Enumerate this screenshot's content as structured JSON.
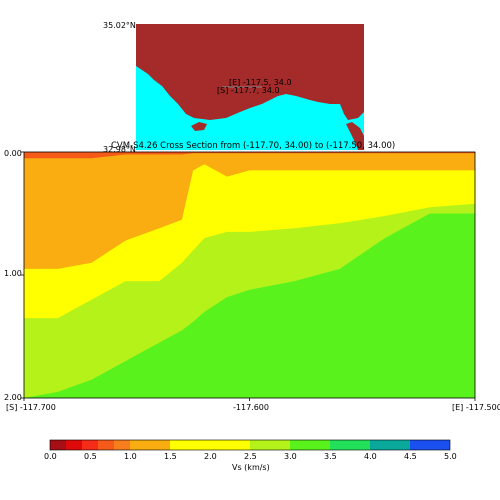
{
  "map": {
    "lat_top_label": "35.02°N",
    "lat_bottom_label": "32.98°N",
    "start_label": "[S] -117.7, 34.0",
    "end_label": "[E] -117.5, 34.0",
    "land_color": "#a52a2a",
    "ocean_color": "#00ffff"
  },
  "chart_data": {
    "type": "heatmap",
    "title": "CVM-S4.26 Cross Section from (-117.70, 34.00) to (-117.50, 34.00)",
    "x_ticks": [
      "[S] -117.700",
      "-117.600",
      "[E] -117.500"
    ],
    "y_ticks": [
      "0.00",
      "1.00",
      "2.00"
    ],
    "xlim": [
      -117.7,
      -117.5
    ],
    "ylim": [
      0,
      2
    ],
    "x": [
      -117.7,
      -117.685,
      -117.67,
      -117.655,
      -117.64,
      -117.63,
      -117.625,
      -117.62,
      -117.61,
      -117.6,
      -117.58,
      -117.56,
      -117.54,
      -117.52,
      -117.5
    ],
    "boundaries": [
      {
        "vs_above": 0.75,
        "vs_below": 1.25,
        "depth": [
          0.05,
          0.05,
          0.05,
          0.02,
          0.02,
          0.02,
          0.01,
          0.01,
          0.01,
          0.01,
          0.01,
          0.01,
          0.01,
          0.01,
          0.01
        ]
      },
      {
        "vs_above": 1.25,
        "vs_below": 1.75,
        "depth": [
          0.95,
          0.95,
          0.9,
          0.72,
          0.62,
          0.55,
          0.15,
          0.1,
          0.2,
          0.15,
          0.15,
          0.15,
          0.15,
          0.15,
          0.15
        ]
      },
      {
        "vs_above": 1.75,
        "vs_below": 2.75,
        "depth": [
          1.35,
          1.35,
          1.2,
          1.05,
          1.05,
          0.9,
          0.8,
          0.7,
          0.65,
          0.65,
          0.62,
          0.58,
          0.52,
          0.45,
          0.42
        ]
      },
      {
        "vs_above": 2.75,
        "vs_below": 3.25,
        "depth": [
          2.0,
          1.95,
          1.85,
          1.7,
          1.55,
          1.45,
          1.38,
          1.3,
          1.18,
          1.12,
          1.05,
          0.95,
          0.7,
          0.5,
          0.5
        ]
      }
    ],
    "colorbar": {
      "label": "Vs (km/s)",
      "ticks": [
        "0.0",
        "0.5",
        "1.0",
        "1.5",
        "2.0",
        "2.5",
        "3.0",
        "3.5",
        "4.0",
        "4.5",
        "5.0"
      ],
      "bins": [
        {
          "min": 0.0,
          "max": 0.2,
          "color": "#a50f15"
        },
        {
          "min": 0.2,
          "max": 0.4,
          "color": "#de0a0a"
        },
        {
          "min": 0.4,
          "max": 0.6,
          "color": "#f52c17"
        },
        {
          "min": 0.6,
          "max": 0.8,
          "color": "#f55a18"
        },
        {
          "min": 0.8,
          "max": 1.0,
          "color": "#f77e1d"
        },
        {
          "min": 1.0,
          "max": 1.5,
          "color": "#f9ad10"
        },
        {
          "min": 1.5,
          "max": 2.5,
          "color": "#ffff00"
        },
        {
          "min": 2.5,
          "max": 3.0,
          "color": "#b5f21a"
        },
        {
          "min": 3.0,
          "max": 3.5,
          "color": "#5af21d"
        },
        {
          "min": 3.5,
          "max": 4.0,
          "color": "#23e05a"
        },
        {
          "min": 4.0,
          "max": 4.5,
          "color": "#0aa89a"
        },
        {
          "min": 4.5,
          "max": 5.0,
          "color": "#1a50f0"
        }
      ]
    }
  }
}
